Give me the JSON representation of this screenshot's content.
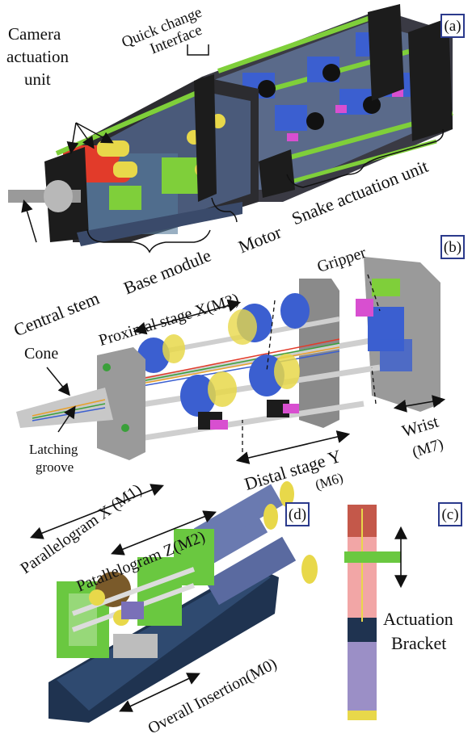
{
  "panels": {
    "a": "(a)",
    "b": "(b)",
    "c": "(c)",
    "d": "(d)"
  },
  "labels": {
    "quick_change_1": "Quick change",
    "quick_change_2": "Interface",
    "camera_1": "Camera",
    "camera_2": "actuation",
    "camera_3": "unit",
    "motor": "Motor",
    "snake_actuation": "Snake actuation unit",
    "central_stem": "Central stem",
    "base_module": "Base module",
    "proximal_stage": "Proximal stage X(M3)",
    "gripper": "Gripper",
    "cone": "Cone",
    "latching_1": "Latching",
    "latching_2": "groove",
    "distal_stage": "Distal stage Y",
    "m6": "(M6)",
    "wrist": "Wrist",
    "m7": "(M7)",
    "parallelogram_x": "Parallelogram X (M1)",
    "parallelogram_z": "Patallelogram Z(M2)",
    "overall_insertion": "Overall Insertion(M0)",
    "actuation": "Actuation",
    "bracket": "Bracket"
  },
  "colors": {
    "frame": "#2a2a2a",
    "green_rod": "#7fcf3a",
    "blue_block": "#3b5fd0",
    "red_motor": "#e23b2a",
    "yellow_ring": "#e8d84a",
    "magenta": "#d84fd0",
    "grey_plate": "#9a9a9a",
    "pink_tube": "#f2a6a6",
    "navy_tube": "#1f3350",
    "purple_tube": "#9b8fc6",
    "tag_border": "#2b3a8c"
  }
}
